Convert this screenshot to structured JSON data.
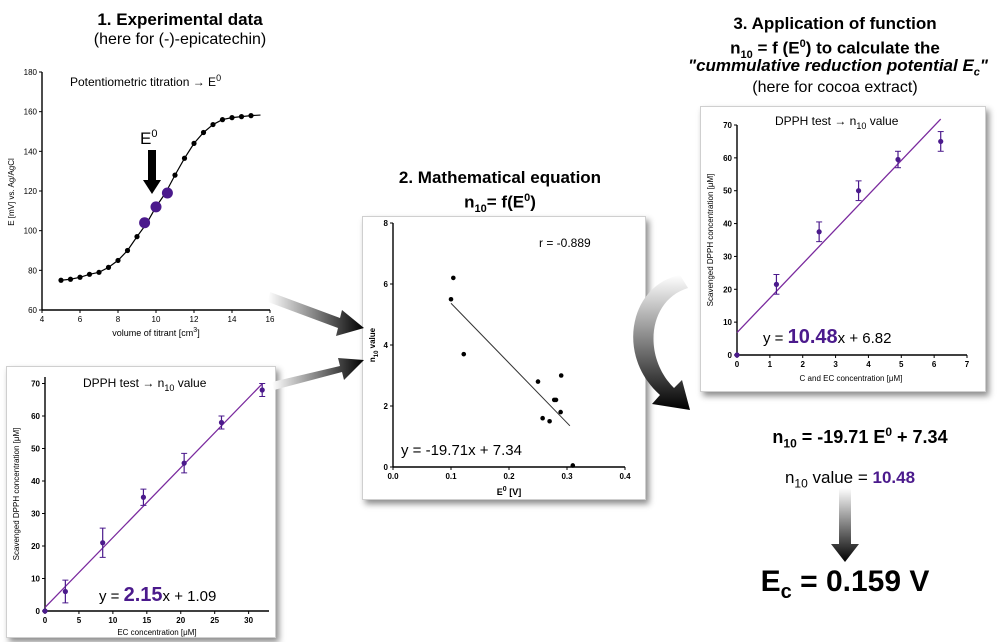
{
  "section1": {
    "title": "1. Experimental data",
    "subtitle": "(here for (-)-epicatechin)"
  },
  "section2": {
    "title": "2. Mathematical equation",
    "subtitle_main": "n",
    "subtitle_sub": "10",
    "subtitle_rest": "= f(E",
    "subtitle_sup": "0",
    "subtitle_end": ")"
  },
  "section3": {
    "title": "3. Application of function",
    "line2_a": "n",
    "line2_sub": "10",
    "line2_b": " = f (E",
    "line2_sup": "0",
    "line2_c": ") to calculate the",
    "line3": "\"cummulative reduction potential E",
    "line3_sub": "c",
    "line3_end": "\"",
    "line4": "(here for cocoa extract)"
  },
  "results": {
    "eq_n": "n",
    "eq_sub": "10",
    "eq_mid": " = -19.71 E",
    "eq_sup": "0",
    "eq_end": " + 7.34",
    "val_n": "n",
    "val_sub": "10",
    "val_mid": " value = ",
    "val_num": "10.48",
    "ec_main": "E",
    "ec_sub": "c",
    "ec_end": " = 0.159 V"
  },
  "colors": {
    "accent": "#4b1a8c",
    "line": "#7a2a9e"
  },
  "chart_data": [
    {
      "type": "line",
      "annotation_text": "Potentiometric titration → E",
      "annotation_sup": "0",
      "marker_label": "E",
      "marker_sup": "0",
      "xlabel": "volume of titrant [cm",
      "xlabel_sup": "3",
      "xlabel_end": "]",
      "ylabel": "E [mV] vs. Ag/AgCl",
      "xlim": [
        4,
        16
      ],
      "ylim": [
        60,
        180
      ],
      "xticks": [
        "4",
        "6",
        "8",
        "10",
        "12",
        "14",
        "16"
      ],
      "yticks": [
        "60",
        "80",
        "100",
        "120",
        "140",
        "160",
        "180"
      ],
      "x": [
        5,
        5.5,
        6,
        6.5,
        7,
        7.5,
        8,
        8.5,
        9,
        9.5,
        10,
        10.5,
        11,
        11.5,
        12,
        12.5,
        13,
        13.5,
        14,
        14.5,
        15
      ],
      "y": [
        75,
        75.5,
        76.5,
        78,
        79,
        81.5,
        85,
        90,
        97,
        103.5,
        112,
        119,
        128,
        136.5,
        144,
        149.5,
        153.5,
        156,
        157,
        157.5,
        158
      ],
      "highlight_x": [
        9.4,
        10,
        10.6
      ],
      "highlight_y": [
        104,
        112,
        119
      ]
    },
    {
      "type": "scatter",
      "annotation_text": "DPPH test → n",
      "annotation_sub": "10",
      "annotation_end": " value",
      "equation_prefix": "y = ",
      "equation_slope": "2.15",
      "equation_suffix": "x + 1.09",
      "xlabel": "EC concentration [μM]",
      "ylabel": "Scavenged DPPH concentration [μM]",
      "xlim": [
        0,
        33
      ],
      "ylim": [
        0,
        72
      ],
      "xticks": [
        "0",
        "5",
        "10",
        "15",
        "20",
        "25",
        "30"
      ],
      "yticks": [
        "0",
        "10",
        "20",
        "30",
        "40",
        "50",
        "60",
        "70"
      ],
      "x": [
        0,
        3,
        8.5,
        14.5,
        20.5,
        26,
        32
      ],
      "y": [
        0,
        6,
        21,
        35,
        45.5,
        58,
        68
      ],
      "err": [
        0,
        3.5,
        4.5,
        2.5,
        3,
        2,
        2
      ],
      "fit": [
        [
          0,
          1.09
        ],
        [
          32,
          69.9
        ]
      ]
    },
    {
      "type": "scatter",
      "annotation_r": "r = -0.889",
      "equation": "y = -19.71x + 7.34",
      "xlabel": "E",
      "xlabel_sup": "0",
      "xlabel_end": " [V]",
      "ylabel": "n",
      "ylabel_sub": "10",
      "ylabel_end": " value",
      "xlim": [
        0,
        0.4
      ],
      "ylim": [
        0,
        8
      ],
      "xticks": [
        "0.0",
        "0.1",
        "0.2",
        "0.3",
        "0.4"
      ],
      "yticks": [
        "0",
        "2",
        "4",
        "6",
        "8"
      ],
      "x": [
        0.1,
        0.104,
        0.122,
        0.25,
        0.258,
        0.27,
        0.278,
        0.281,
        0.289,
        0.29,
        0.31
      ],
      "y": [
        5.5,
        6.2,
        3.7,
        2.8,
        1.6,
        1.5,
        2.2,
        2.2,
        1.8,
        3.0,
        0.05
      ],
      "fit": [
        [
          0.1,
          5.37
        ],
        [
          0.305,
          1.35
        ]
      ]
    },
    {
      "type": "scatter",
      "annotation_text": "DPPH test → n",
      "annotation_sub": "10",
      "annotation_end": " value",
      "equation_prefix": "y = ",
      "equation_slope": "10.48",
      "equation_suffix": "x + 6.82",
      "xlabel": "C and EC concentration [μM]",
      "ylabel": "Scavenged DPPH concentration [μM]",
      "xlim": [
        0,
        7
      ],
      "ylim": [
        0,
        70
      ],
      "xticks": [
        "0",
        "1",
        "2",
        "3",
        "4",
        "5",
        "6",
        "7"
      ],
      "yticks": [
        "0",
        "10",
        "20",
        "30",
        "40",
        "50",
        "60",
        "70"
      ],
      "x": [
        0,
        1.2,
        2.5,
        3.7,
        4.9,
        6.2
      ],
      "y": [
        0,
        21.5,
        37.5,
        50,
        59.5,
        65
      ],
      "err": [
        0,
        3,
        3,
        3,
        2.5,
        3
      ],
      "fit": [
        [
          0,
          6.82
        ],
        [
          6.2,
          71.8
        ]
      ]
    }
  ]
}
